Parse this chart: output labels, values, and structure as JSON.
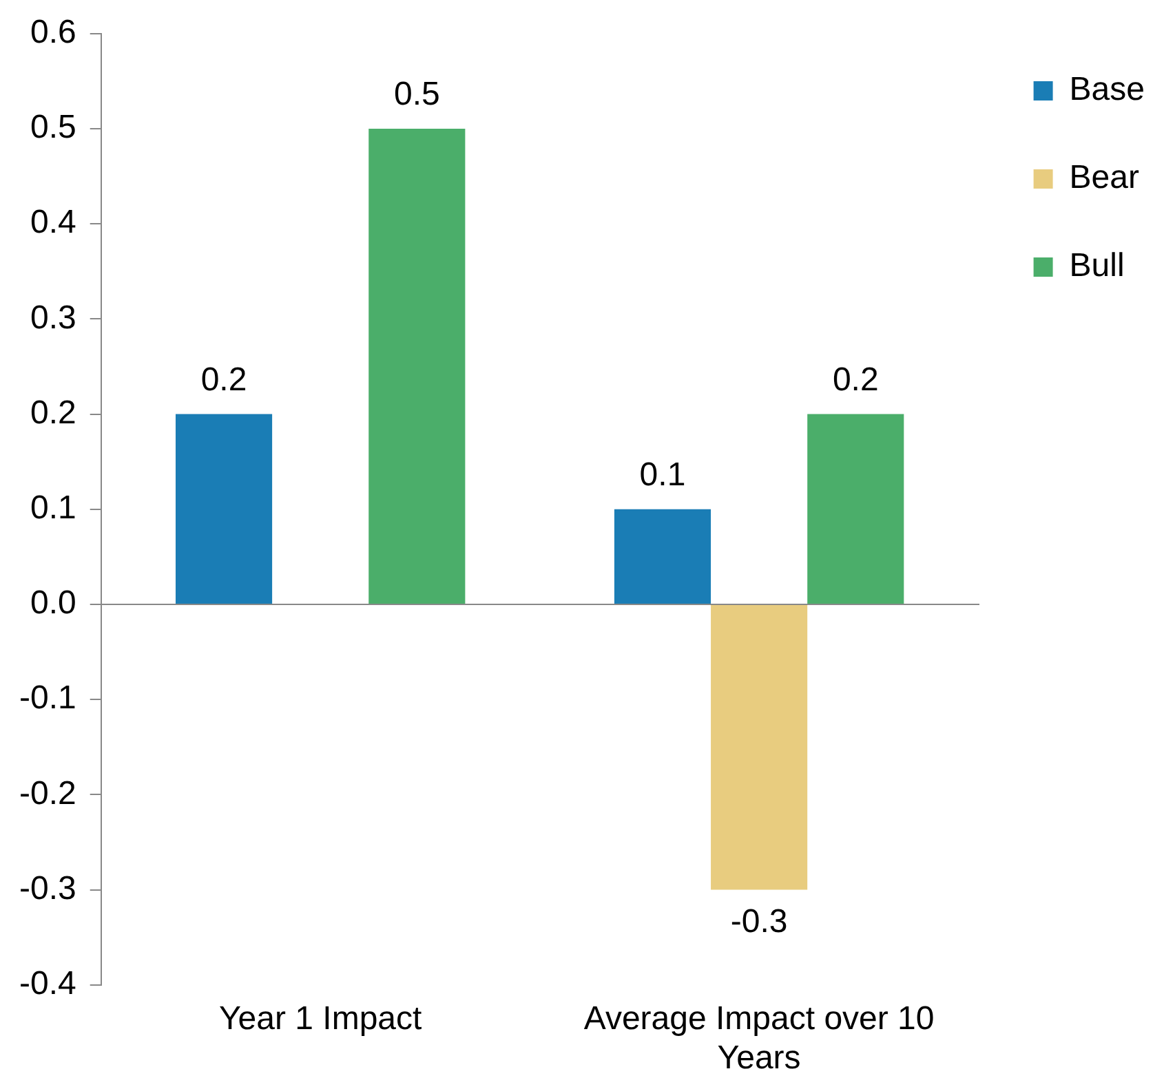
{
  "chart_data": {
    "type": "bar",
    "categories": [
      "Year 1 Impact",
      "Average Impact over 10 Years"
    ],
    "series": [
      {
        "name": "Base",
        "color": "#1a7db5",
        "values": [
          0.2,
          0.1
        ]
      },
      {
        "name": "Bear",
        "color": "#e8cc7f",
        "values": [
          null,
          -0.3
        ]
      },
      {
        "name": "Bull",
        "color": "#4bae6a",
        "values": [
          0.5,
          0.2
        ]
      }
    ],
    "ylim": [
      -0.4,
      0.6
    ],
    "yticks": [
      -0.4,
      -0.3,
      -0.2,
      -0.1,
      {
        "value": 0,
        "label": "0.0"
      },
      0.1,
      0.2,
      0.3,
      0.4,
      0.5,
      0.6
    ],
    "data_labels": true,
    "legend": "top right"
  }
}
